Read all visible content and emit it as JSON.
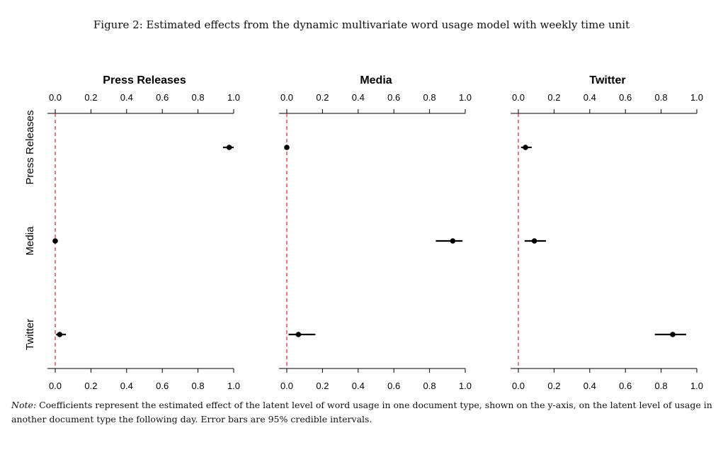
{
  "caption": "Figure 2: Estimated effects from the dynamic multivariate word usage model with weekly time unit",
  "note": {
    "lead": "Note:",
    "text": " Coefficients represent the estimated effect of the latent level of word usage in one document type, shown on the y-axis, on the latent level of usage in another document type the following day. Error bars are 95% credible intervals."
  },
  "chart_data": {
    "type": "scatter",
    "xlim": [
      0,
      1
    ],
    "x_ticks": [
      "0.0",
      "0.2",
      "0.4",
      "0.6",
      "0.8",
      "1.0"
    ],
    "reference_line": {
      "x": 0,
      "style": "dashed",
      "color": "#e8202a"
    },
    "rows": [
      "Press Releases",
      "Media",
      "Twitter"
    ],
    "panels": [
      {
        "title": "Press Releases",
        "points": [
          {
            "row": "Press Releases",
            "est": 0.975,
            "lo": 0.94,
            "hi": 1.0
          },
          {
            "row": "Media",
            "est": 0.0,
            "lo": 0.0,
            "hi": 0.0
          },
          {
            "row": "Twitter",
            "est": 0.025,
            "lo": 0.005,
            "hi": 0.06
          }
        ]
      },
      {
        "title": "Media",
        "points": [
          {
            "row": "Press Releases",
            "est": 0.0,
            "lo": 0.0,
            "hi": 0.0
          },
          {
            "row": "Media",
            "est": 0.93,
            "lo": 0.835,
            "hi": 0.985
          },
          {
            "row": "Twitter",
            "est": 0.065,
            "lo": 0.01,
            "hi": 0.16
          }
        ]
      },
      {
        "title": "Twitter",
        "points": [
          {
            "row": "Press Releases",
            "est": 0.04,
            "lo": 0.015,
            "hi": 0.075
          },
          {
            "row": "Media",
            "est": 0.09,
            "lo": 0.035,
            "hi": 0.155
          },
          {
            "row": "Twitter",
            "est": 0.865,
            "lo": 0.765,
            "hi": 0.94
          }
        ]
      }
    ]
  }
}
